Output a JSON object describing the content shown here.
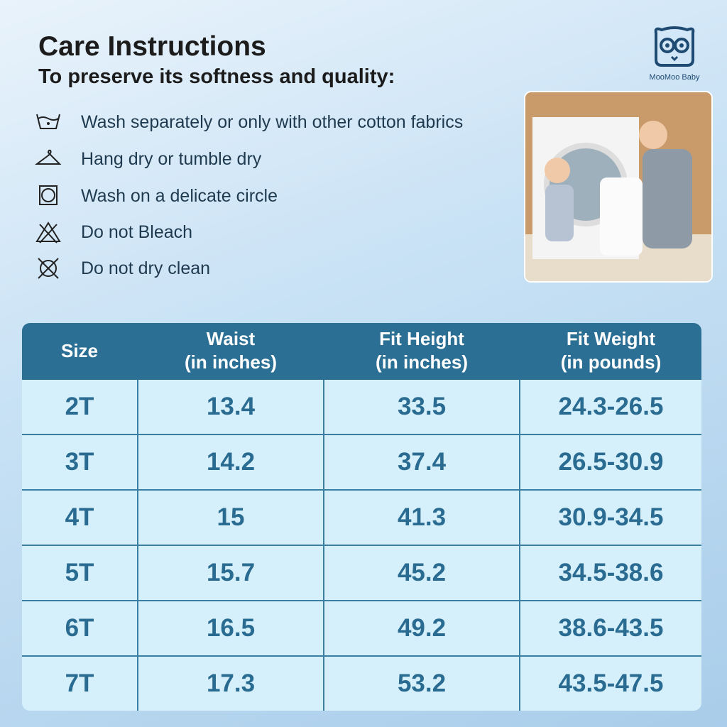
{
  "header": {
    "title": "Care Instructions",
    "subtitle": "To preserve its softness and quality:"
  },
  "brand": {
    "name": "MooMoo Baby"
  },
  "care": [
    {
      "text": "Wash separately or only with other cotton fabrics"
    },
    {
      "text": "Hang dry or tumble dry"
    },
    {
      "text": "Wash on a delicate circle"
    },
    {
      "text": "Do not Bleach"
    },
    {
      "text": "Do not dry clean"
    }
  ],
  "table": {
    "header": [
      [
        "Size"
      ],
      [
        "Waist",
        "(in inches)"
      ],
      [
        "Fit Height",
        "(in inches)"
      ],
      [
        "Fit Weight",
        "(in pounds)"
      ]
    ],
    "rows": [
      [
        "2T",
        "13.4",
        "33.5",
        "24.3-26.5"
      ],
      [
        "3T",
        "14.2",
        "37.4",
        "26.5-30.9"
      ],
      [
        "4T",
        "15",
        "41.3",
        "30.9-34.5"
      ],
      [
        "5T",
        "15.7",
        "45.2",
        "34.5-38.6"
      ],
      [
        "6T",
        "16.5",
        "49.2",
        "38.6-43.5"
      ],
      [
        "7T",
        "17.3",
        "53.2",
        "43.5-47.5"
      ]
    ]
  }
}
